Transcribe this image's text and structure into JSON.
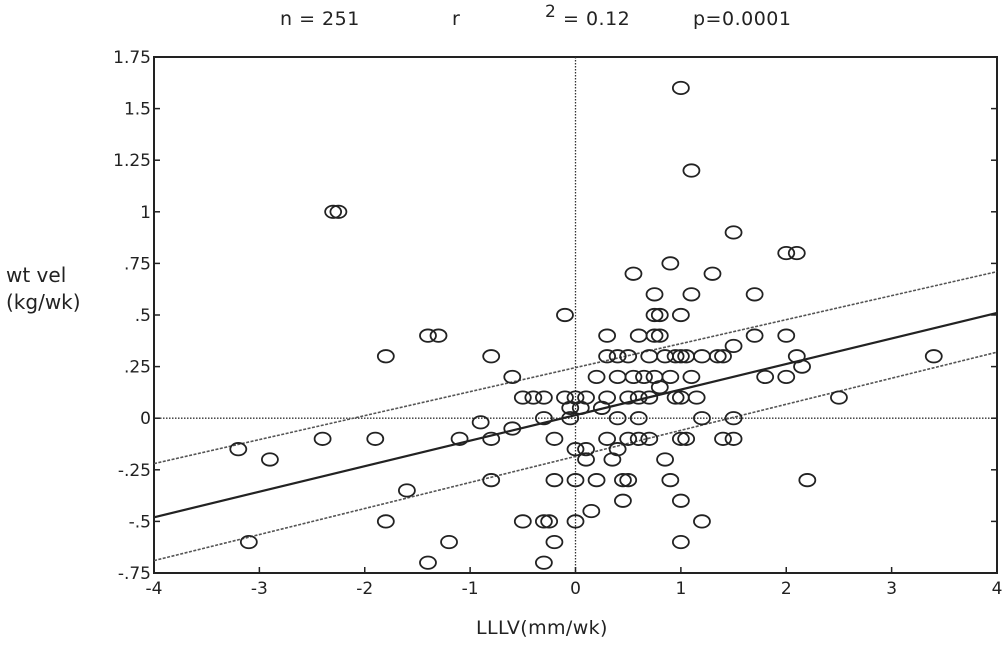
{
  "stats": {
    "n": "n = 251",
    "r": "r",
    "r2_sup": "2",
    "r2_val": "= 0.12",
    "p": "p=0.0001"
  },
  "chart_data": {
    "type": "scatter",
    "xlabel": "LLLV(mm/wk)",
    "ylabel_line1": "wt vel",
    "ylabel_line2": "(kg/wk)",
    "xlim": [
      -4,
      4
    ],
    "ylim": [
      -0.75,
      1.75
    ],
    "xticks": [
      {
        "v": -4,
        "label": "-4"
      },
      {
        "v": -3,
        "label": "-3"
      },
      {
        "v": -2,
        "label": "-2"
      },
      {
        "v": -1,
        "label": "-1"
      },
      {
        "v": 0,
        "label": "0"
      },
      {
        "v": 1,
        "label": "1"
      },
      {
        "v": 2,
        "label": "2"
      },
      {
        "v": 3,
        "label": "3"
      },
      {
        "v": 4,
        "label": "4"
      }
    ],
    "yticks": [
      {
        "v": 1.75,
        "label": "1.75"
      },
      {
        "v": 1.5,
        "label": "1.5"
      },
      {
        "v": 1.25,
        "label": "1.25"
      },
      {
        "v": 1.0,
        "label": "1"
      },
      {
        "v": 0.75,
        "label": ".75"
      },
      {
        "v": 0.5,
        "label": ".5"
      },
      {
        "v": 0.25,
        "label": ".25"
      },
      {
        "v": 0,
        "label": "0"
      },
      {
        "v": -0.25,
        "label": "-.25"
      },
      {
        "v": -0.5,
        "label": "-.5"
      },
      {
        "v": -0.75,
        "label": "-.75"
      }
    ],
    "reference_lines": {
      "x": 0,
      "y": 0
    },
    "regression": {
      "x1": -4,
      "y1": -0.48,
      "x2": 4,
      "y2": 0.51
    },
    "confidence_band": {
      "upper": {
        "x1": -4,
        "y1": -0.22,
        "x2": 4,
        "y2": 0.71
      },
      "lower": {
        "x1": -4,
        "y1": -0.69,
        "x2": 4,
        "y2": 0.32
      }
    },
    "points": [
      [
        -3.2,
        -0.15
      ],
      [
        -3.1,
        -0.6
      ],
      [
        -2.9,
        -0.2
      ],
      [
        -2.4,
        -0.1
      ],
      [
        -2.3,
        1.0
      ],
      [
        -2.25,
        1.0
      ],
      [
        -1.9,
        -0.1
      ],
      [
        -1.8,
        0.3
      ],
      [
        -1.8,
        -0.5
      ],
      [
        -1.6,
        -0.35
      ],
      [
        -1.4,
        0.4
      ],
      [
        -1.3,
        0.4
      ],
      [
        -1.4,
        -0.7
      ],
      [
        -1.2,
        -0.6
      ],
      [
        -1.1,
        -0.1
      ],
      [
        -0.9,
        -0.02
      ],
      [
        -0.8,
        0.3
      ],
      [
        -0.8,
        -0.3
      ],
      [
        -0.8,
        -0.1
      ],
      [
        -0.6,
        -0.05
      ],
      [
        -0.6,
        0.2
      ],
      [
        -0.5,
        0.1
      ],
      [
        -0.5,
        -0.5
      ],
      [
        -0.4,
        0.1
      ],
      [
        -0.3,
        0.1
      ],
      [
        -0.3,
        0.0
      ],
      [
        -0.3,
        -0.5
      ],
      [
        -0.25,
        -0.5
      ],
      [
        -0.2,
        -0.6
      ],
      [
        -0.3,
        -0.7
      ],
      [
        -0.2,
        -0.1
      ],
      [
        -0.2,
        -0.3
      ],
      [
        -0.1,
        0.1
      ],
      [
        -0.1,
        0.5
      ],
      [
        -0.05,
        0.0
      ],
      [
        -0.05,
        0.05
      ],
      [
        0.0,
        0.1
      ],
      [
        0.0,
        -0.15
      ],
      [
        0.0,
        -0.3
      ],
      [
        0.0,
        -0.5
      ],
      [
        0.05,
        0.05
      ],
      [
        0.1,
        0.1
      ],
      [
        0.1,
        -0.15
      ],
      [
        0.1,
        -0.2
      ],
      [
        0.15,
        -0.45
      ],
      [
        0.2,
        0.2
      ],
      [
        0.2,
        -0.3
      ],
      [
        0.25,
        0.05
      ],
      [
        0.3,
        0.4
      ],
      [
        0.3,
        0.3
      ],
      [
        0.3,
        0.1
      ],
      [
        0.3,
        -0.1
      ],
      [
        0.35,
        -0.2
      ],
      [
        0.4,
        0.3
      ],
      [
        0.4,
        0.2
      ],
      [
        0.4,
        0.0
      ],
      [
        0.4,
        -0.15
      ],
      [
        0.45,
        -0.3
      ],
      [
        0.45,
        -0.4
      ],
      [
        0.5,
        0.3
      ],
      [
        0.5,
        0.1
      ],
      [
        0.5,
        -0.1
      ],
      [
        0.5,
        -0.3
      ],
      [
        0.55,
        0.7
      ],
      [
        0.55,
        0.2
      ],
      [
        0.6,
        0.4
      ],
      [
        0.6,
        0.1
      ],
      [
        0.6,
        0.0
      ],
      [
        0.6,
        -0.1
      ],
      [
        0.65,
        0.2
      ],
      [
        0.7,
        0.3
      ],
      [
        0.7,
        0.1
      ],
      [
        0.7,
        -0.1
      ],
      [
        0.75,
        0.6
      ],
      [
        0.75,
        0.5
      ],
      [
        0.75,
        0.4
      ],
      [
        0.75,
        0.2
      ],
      [
        0.8,
        0.5
      ],
      [
        0.8,
        0.4
      ],
      [
        0.8,
        0.15
      ],
      [
        0.85,
        0.3
      ],
      [
        0.85,
        -0.2
      ],
      [
        0.9,
        0.75
      ],
      [
        0.9,
        0.2
      ],
      [
        0.9,
        -0.3
      ],
      [
        0.95,
        0.3
      ],
      [
        0.95,
        0.1
      ],
      [
        1.0,
        0.5
      ],
      [
        1.0,
        0.3
      ],
      [
        1.0,
        -0.1
      ],
      [
        1.0,
        -0.4
      ],
      [
        1.0,
        -0.6
      ],
      [
        1.0,
        0.1
      ],
      [
        1.05,
        0.3
      ],
      [
        1.05,
        -0.1
      ],
      [
        1.0,
        1.6
      ],
      [
        1.1,
        1.2
      ],
      [
        1.1,
        0.6
      ],
      [
        1.1,
        0.2
      ],
      [
        1.15,
        0.1
      ],
      [
        1.2,
        0.3
      ],
      [
        1.2,
        0.0
      ],
      [
        1.2,
        -0.5
      ],
      [
        1.3,
        0.7
      ],
      [
        1.35,
        0.3
      ],
      [
        1.4,
        0.3
      ],
      [
        1.4,
        -0.1
      ],
      [
        1.5,
        0.9
      ],
      [
        1.5,
        0.35
      ],
      [
        1.5,
        0.0
      ],
      [
        1.5,
        -0.1
      ],
      [
        1.7,
        0.6
      ],
      [
        1.7,
        0.4
      ],
      [
        1.8,
        0.2
      ],
      [
        2.0,
        0.8
      ],
      [
        2.0,
        0.4
      ],
      [
        2.0,
        0.2
      ],
      [
        2.1,
        0.8
      ],
      [
        2.1,
        0.3
      ],
      [
        2.15,
        0.25
      ],
      [
        2.2,
        -0.3
      ],
      [
        2.5,
        0.1
      ],
      [
        3.4,
        0.3
      ]
    ]
  }
}
